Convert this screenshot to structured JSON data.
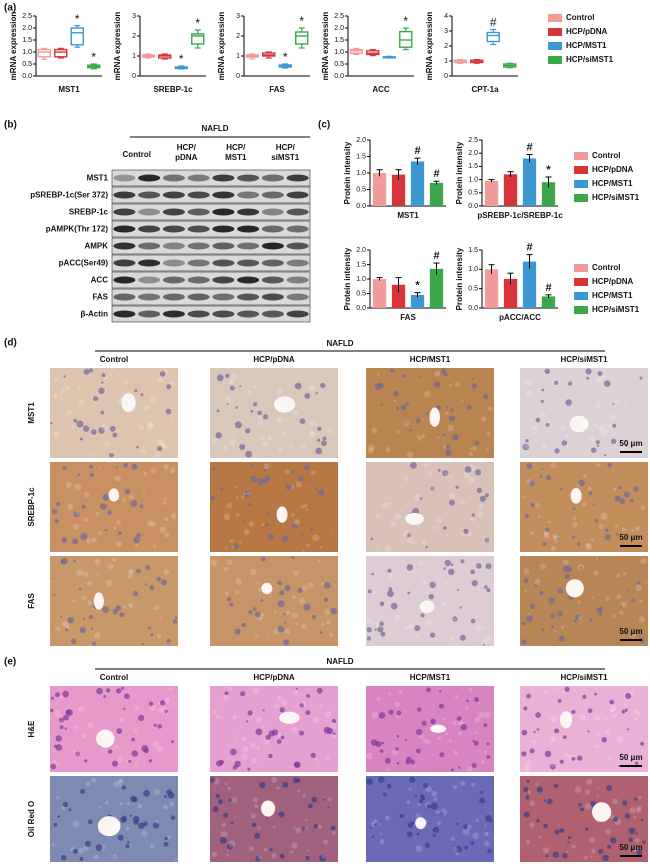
{
  "panel_labels": [
    "(a)",
    "(b)",
    "(c)",
    "(d)",
    "(e)"
  ],
  "groups": [
    {
      "name": "Control",
      "color": "#f29b9b"
    },
    {
      "name": "HCP/pDNA",
      "color": "#d8353a"
    },
    {
      "name": "HCP/MST1",
      "color": "#3d97d3"
    },
    {
      "name": "HCP/siMST1",
      "color": "#3aa84a"
    }
  ],
  "chart_data": [
    {
      "type": "box",
      "ylabel": "mRNA expression",
      "xlabel": "MST1",
      "ylim": [
        0,
        2.5
      ],
      "yticks": [
        {
          "value": 0,
          "label": "0.0"
        },
        0.5,
        {
          "value": 1,
          "label": "1.0"
        },
        1.5,
        {
          "value": 2,
          "label": "2.0"
        },
        2.5
      ],
      "values": [
        [
          0.7,
          0.8,
          1.0,
          1.1,
          1.15
        ],
        [
          0.75,
          0.8,
          1.0,
          1.1,
          1.15
        ],
        [
          1.2,
          1.3,
          1.8,
          2.0,
          2.1
        ],
        [
          0.3,
          0.35,
          0.4,
          0.45,
          0.5
        ]
      ],
      "annotations": [
        null,
        null,
        "*",
        "*"
      ]
    },
    {
      "type": "box",
      "ylabel": "mRNA expression",
      "xlabel": "SREBP-1c",
      "ylim": [
        0,
        3
      ],
      "yticks": [
        0,
        1,
        2,
        3
      ],
      "values": [
        [
          0.9,
          0.95,
          1.0,
          1.05,
          1.1
        ],
        [
          0.85,
          0.9,
          1.0,
          1.05,
          1.1
        ],
        [
          0.35,
          0.38,
          0.42,
          0.45,
          0.5
        ],
        [
          1.4,
          1.6,
          2.0,
          2.1,
          2.3
        ]
      ],
      "annotations": [
        null,
        null,
        "*",
        "*"
      ]
    },
    {
      "type": "box",
      "ylabel": "mRNA expression",
      "xlabel": "FAS",
      "ylim": [
        0,
        3
      ],
      "yticks": [
        0,
        1,
        2,
        3
      ],
      "values": [
        [
          0.85,
          0.95,
          1.0,
          1.05,
          1.1
        ],
        [
          0.9,
          1.0,
          1.05,
          1.15,
          1.2
        ],
        [
          0.4,
          0.45,
          0.5,
          0.55,
          0.6
        ],
        [
          1.4,
          1.6,
          2.0,
          2.2,
          2.4
        ]
      ],
      "annotations": [
        null,
        null,
        "*",
        "*"
      ]
    },
    {
      "type": "box",
      "ylabel": "mRNA expression",
      "xlabel": "ACC",
      "ylim": [
        0,
        2.5
      ],
      "yticks": [
        {
          "value": 0,
          "label": "0.0"
        },
        0.5,
        {
          "value": 1,
          "label": "1.0"
        },
        1.5,
        {
          "value": 2,
          "label": "2.0"
        },
        2.5
      ],
      "values": [
        [
          0.9,
          0.95,
          1.05,
          1.1,
          1.15
        ],
        [
          0.85,
          0.9,
          0.95,
          1.05,
          1.1
        ],
        [
          0.75,
          0.76,
          0.78,
          0.8,
          0.82
        ],
        [
          1.1,
          1.2,
          1.5,
          1.85,
          2.0
        ]
      ],
      "annotations": [
        null,
        null,
        null,
        "*"
      ]
    },
    {
      "type": "box",
      "ylabel": "mRNA expression",
      "xlabel": "CPT-1a",
      "ylim": [
        0,
        4
      ],
      "yticks": [
        0,
        1,
        2,
        3,
        4
      ],
      "values": [
        [
          0.85,
          0.9,
          1.0,
          1.05,
          1.1
        ],
        [
          0.85,
          0.9,
          0.95,
          1.05,
          1.1
        ],
        [
          2.1,
          2.3,
          2.7,
          2.9,
          3.1
        ],
        [
          0.55,
          0.6,
          0.7,
          0.8,
          0.85
        ]
      ],
      "annotations": [
        null,
        null,
        "#",
        null
      ]
    },
    {
      "type": "bar",
      "ylabel": "Protein intensity",
      "xlabel": "MST1",
      "ylim": [
        0,
        2
      ],
      "yticks": [
        {
          "value": 0,
          "label": "0.0"
        },
        0.5,
        {
          "value": 1,
          "label": "1.0"
        },
        1.5,
        {
          "value": 2,
          "label": "2.0"
        }
      ],
      "values": [
        1.0,
        0.95,
        1.35,
        0.7
      ],
      "errors": [
        0.1,
        0.15,
        0.1,
        0.05
      ],
      "annotations": [
        null,
        null,
        "#",
        "#"
      ]
    },
    {
      "type": "bar",
      "ylabel": "Protein intensity",
      "xlabel": "pSREBP-1c/SREBP-1c",
      "ylim": [
        0,
        2.5
      ],
      "yticks": [
        {
          "value": 0,
          "label": "0.0"
        },
        0.5,
        {
          "value": 1,
          "label": "1.0"
        },
        1.5,
        {
          "value": 2,
          "label": "2.0"
        },
        2.5
      ],
      "values": [
        0.95,
        1.2,
        1.8,
        0.9
      ],
      "errors": [
        0.05,
        0.1,
        0.15,
        0.2
      ],
      "annotations": [
        null,
        null,
        "#",
        "*"
      ]
    },
    {
      "type": "bar",
      "ylabel": "Protein intensity",
      "xlabel": "FAS",
      "ylim": [
        0,
        2
      ],
      "yticks": [
        {
          "value": 0,
          "label": "0.0"
        },
        0.5,
        {
          "value": 1,
          "label": "1.0"
        },
        1.5,
        {
          "value": 2,
          "label": "2.0"
        }
      ],
      "values": [
        1.0,
        0.8,
        0.45,
        1.35
      ],
      "errors": [
        0.05,
        0.25,
        0.08,
        0.2
      ],
      "annotations": [
        null,
        null,
        "*",
        "#"
      ]
    },
    {
      "type": "bar",
      "ylabel": "Protein intensity",
      "xlabel": "pACC/ACC",
      "ylim": [
        0,
        1.5
      ],
      "yticks": [
        {
          "value": 0,
          "label": "0.0"
        },
        0.5,
        {
          "value": 1,
          "label": "1.0"
        },
        1.5
      ],
      "values": [
        1.0,
        0.75,
        1.2,
        0.3
      ],
      "errors": [
        0.12,
        0.15,
        0.18,
        0.04
      ],
      "annotations": [
        null,
        null,
        "#",
        "#"
      ]
    }
  ],
  "blot": {
    "header": "NAFLD",
    "lanes": [
      [
        "Control"
      ],
      [
        "HCP/",
        "pDNA"
      ],
      [
        "HCP/",
        "MST1"
      ],
      [
        "HCP/",
        "siMST1"
      ]
    ],
    "rows": [
      "MST1",
      "pSREBP-1c(Ser 372)",
      "SREBP-1c",
      "pAMPK(Thr 172)",
      "AMPK",
      "pACC(Ser49)",
      "ACC",
      "FAS",
      "β-Actin"
    ]
  },
  "ihc": {
    "header": "NAFLD",
    "columns": [
      "Control",
      "HCP/pDNA",
      "HCP/MST1",
      "HCP/siMST1"
    ],
    "rows": [
      "MST1",
      "SREBP-1c",
      "FAS"
    ],
    "scale_bar": "50 μm"
  },
  "staining": {
    "header": "NAFLD",
    "columns": [
      "Control",
      "HCP/pDNA",
      "HCP/MST1",
      "HCP/siMST1"
    ],
    "rows": [
      "H&E",
      "Oil Red O"
    ],
    "scale_bar": "50 μm"
  }
}
